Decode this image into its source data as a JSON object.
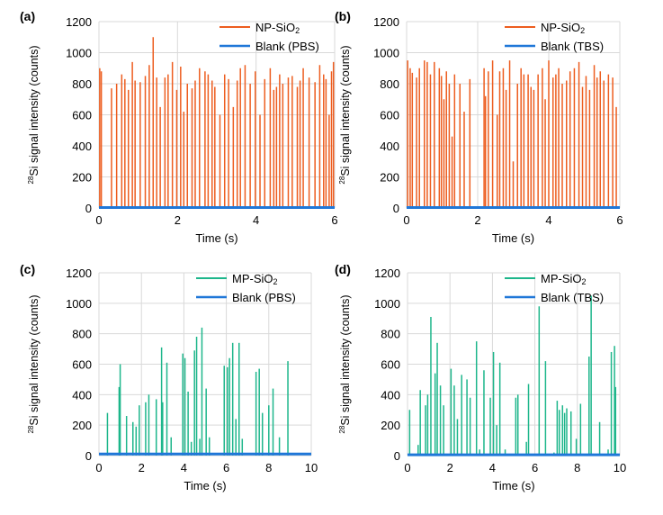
{
  "chart_data": [
    {
      "panel_label": "(a)",
      "type": "line",
      "xlabel": "Time (s)",
      "ylabel_prefix": "28",
      "ylabel": "Si signal intensity (counts)",
      "xlim": [
        0,
        6
      ],
      "ylim": [
        0,
        1200
      ],
      "xticks": [
        "0",
        "2",
        "4",
        "6"
      ],
      "yticks": [
        "0",
        "200",
        "400",
        "600",
        "800",
        "1000",
        "1200"
      ],
      "grid": true,
      "legend_position": "top-right",
      "series": [
        {
          "name": "NP-SiO",
          "name_sub": "2",
          "color": "#ED5D1F",
          "spike_times": [
            0.02,
            0.06,
            0.32,
            0.45,
            0.58,
            0.66,
            0.75,
            0.85,
            0.92,
            1.05,
            1.18,
            1.28,
            1.38,
            1.47,
            1.56,
            1.68,
            1.76,
            1.87,
            1.98,
            2.08,
            2.16,
            2.25,
            2.37,
            2.45,
            2.56,
            2.7,
            2.78,
            2.88,
            2.95,
            3.08,
            3.2,
            3.3,
            3.42,
            3.52,
            3.6,
            3.72,
            3.85,
            3.98,
            4.1,
            4.22,
            4.36,
            4.45,
            4.52,
            4.6,
            4.68,
            4.82,
            4.92,
            5.05,
            5.12,
            5.2,
            5.35,
            5.5,
            5.62,
            5.72,
            5.78,
            5.86,
            5.92,
            5.97
          ],
          "spike_values": [
            900,
            880,
            770,
            800,
            860,
            830,
            760,
            940,
            820,
            810,
            850,
            920,
            1100,
            840,
            650,
            840,
            860,
            940,
            760,
            910,
            620,
            800,
            770,
            820,
            900,
            880,
            860,
            820,
            780,
            600,
            860,
            830,
            650,
            820,
            900,
            920,
            800,
            880,
            600,
            830,
            900,
            760,
            780,
            860,
            800,
            840,
            850,
            780,
            820,
            900,
            840,
            810,
            920,
            860,
            830,
            600,
            880,
            940
          ]
        },
        {
          "name": "Blank (PBS)",
          "name_sub": "",
          "color": "#1F77D8",
          "level": 3
        }
      ]
    },
    {
      "panel_label": "(b)",
      "type": "line",
      "xlabel": "Time (s)",
      "ylabel_prefix": "28",
      "ylabel": "Si signal intensity (counts)",
      "xlim": [
        0,
        6
      ],
      "ylim": [
        0,
        1200
      ],
      "xticks": [
        "0",
        "2",
        "4",
        "6"
      ],
      "yticks": [
        "0",
        "200",
        "400",
        "600",
        "800",
        "1000",
        "1200"
      ],
      "grid": true,
      "legend_position": "top-right",
      "series": [
        {
          "name": "NP-SiO",
          "name_sub": "2",
          "color": "#ED5D1F",
          "spike_times": [
            0.03,
            0.1,
            0.16,
            0.28,
            0.36,
            0.5,
            0.58,
            0.67,
            0.78,
            0.92,
            0.98,
            1.05,
            1.12,
            1.2,
            1.28,
            1.35,
            1.5,
            1.62,
            1.78,
            2.18,
            2.22,
            2.3,
            2.42,
            2.55,
            2.62,
            2.72,
            2.8,
            2.9,
            3.0,
            3.12,
            3.22,
            3.3,
            3.42,
            3.5,
            3.58,
            3.7,
            3.82,
            3.9,
            4.0,
            4.12,
            4.2,
            4.28,
            4.38,
            4.5,
            4.6,
            4.72,
            4.85,
            4.95,
            5.05,
            5.15,
            5.28,
            5.36,
            5.45,
            5.55,
            5.68,
            5.8,
            5.9
          ],
          "spike_values": [
            950,
            900,
            870,
            840,
            900,
            950,
            940,
            860,
            940,
            900,
            850,
            700,
            880,
            800,
            460,
            860,
            800,
            620,
            830,
            900,
            720,
            880,
            950,
            600,
            880,
            900,
            760,
            950,
            300,
            800,
            900,
            860,
            860,
            780,
            760,
            860,
            900,
            700,
            950,
            840,
            860,
            900,
            800,
            820,
            880,
            900,
            940,
            780,
            850,
            760,
            920,
            840,
            880,
            820,
            860,
            840,
            650
          ]
        },
        {
          "name": "Blank (TBS)",
          "name_sub": "",
          "color": "#1F77D8",
          "level": 3
        }
      ]
    },
    {
      "panel_label": "(c)",
      "type": "line",
      "xlabel": "Time (s)",
      "ylabel_prefix": "28",
      "ylabel": "Si signal intensity (counts)",
      "xlim": [
        0,
        10
      ],
      "ylim": [
        0,
        1200
      ],
      "xticks": [
        "0",
        "2",
        "4",
        "6",
        "8",
        "10"
      ],
      "yticks": [
        "0",
        "200",
        "400",
        "600",
        "800",
        "1000",
        "1200"
      ],
      "grid": true,
      "legend_position": "top-right",
      "series": [
        {
          "name": "MP-SiO",
          "name_sub": "2",
          "color": "#1DB68B",
          "spike_times": [
            0.4,
            0.95,
            1.0,
            1.3,
            1.6,
            1.75,
            1.9,
            2.2,
            2.35,
            2.7,
            2.95,
            3.0,
            3.2,
            3.4,
            3.95,
            4.05,
            4.2,
            4.35,
            4.5,
            4.6,
            4.75,
            4.85,
            5.05,
            5.2,
            5.9,
            6.05,
            6.15,
            6.3,
            6.45,
            6.6,
            6.75,
            7.4,
            7.55,
            7.7,
            8.0,
            8.2,
            8.5,
            8.9
          ],
          "spike_values": [
            280,
            450,
            600,
            260,
            220,
            190,
            330,
            350,
            400,
            370,
            710,
            350,
            610,
            120,
            670,
            640,
            420,
            90,
            690,
            780,
            110,
            840,
            440,
            120,
            590,
            580,
            640,
            740,
            240,
            740,
            110,
            550,
            570,
            280,
            330,
            440,
            120,
            620
          ]
        },
        {
          "name": "Blank (PBS)",
          "name_sub": "",
          "color": "#1F77D8",
          "level": 10
        }
      ]
    },
    {
      "panel_label": "(d)",
      "type": "line",
      "xlabel": "Time (s)",
      "ylabel_prefix": "28",
      "ylabel": "Si signal intensity (counts)",
      "xlim": [
        0,
        10
      ],
      "ylim": [
        0,
        1200
      ],
      "xticks": [
        "0",
        "2",
        "4",
        "6",
        "8",
        "10"
      ],
      "yticks": [
        "0",
        "200",
        "400",
        "600",
        "800",
        "1000",
        "1200"
      ],
      "grid": true,
      "legend_position": "top-right",
      "series": [
        {
          "name": "MP-SiO",
          "name_sub": "2",
          "color": "#1DB68B",
          "spike_times": [
            0.1,
            0.5,
            0.6,
            0.85,
            0.95,
            1.1,
            1.3,
            1.4,
            1.55,
            1.7,
            2.05,
            2.2,
            2.35,
            2.55,
            2.8,
            2.95,
            3.25,
            3.4,
            3.6,
            3.9,
            4.05,
            4.2,
            4.35,
            4.6,
            5.1,
            5.2,
            5.6,
            5.7,
            6.2,
            6.5,
            6.9,
            7.05,
            7.15,
            7.3,
            7.4,
            7.5,
            7.7,
            7.95,
            8.15,
            8.55,
            8.65,
            9.05,
            9.45,
            9.6,
            9.75,
            9.8
          ],
          "spike_values": [
            300,
            70,
            430,
            330,
            400,
            910,
            540,
            740,
            460,
            330,
            570,
            460,
            240,
            530,
            500,
            380,
            750,
            40,
            560,
            380,
            680,
            200,
            610,
            40,
            380,
            400,
            90,
            470,
            980,
            620,
            20,
            360,
            300,
            330,
            280,
            310,
            290,
            110,
            340,
            650,
            1050,
            220,
            40,
            680,
            720,
            450
          ]
        },
        {
          "name": "Blank (TBS)",
          "name_sub": "",
          "color": "#1F77D8",
          "level": 5
        }
      ]
    }
  ]
}
